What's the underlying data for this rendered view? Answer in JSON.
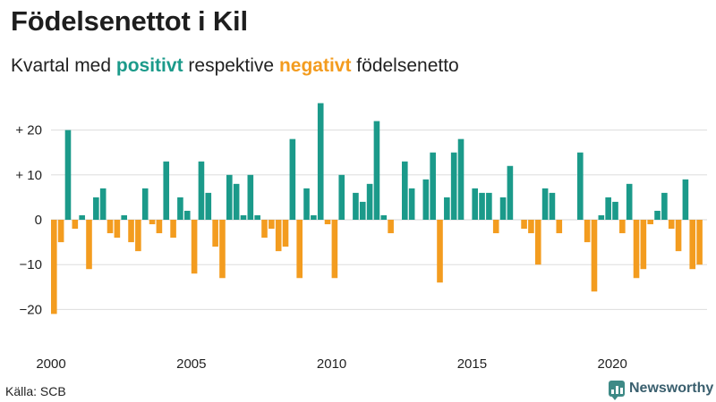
{
  "chart_data": {
    "type": "bar",
    "title": "Födelsenettot i Kil",
    "subtitle": {
      "prefix": "Kvartal med ",
      "positive": "positivt",
      "middle": " respektive ",
      "negative": "negativt",
      "suffix": " födelsenetto"
    },
    "x_start": 2000,
    "periods_per_year": 4,
    "x_ticks": [
      2000,
      2005,
      2010,
      2015,
      2020
    ],
    "x_tick_labels": [
      "2000",
      "2005",
      "2010",
      "2015",
      "2020"
    ],
    "ylim": [
      -25,
      30
    ],
    "y_ticks": [
      20,
      10,
      0,
      -10,
      -20
    ],
    "y_tick_labels": [
      "+ 20",
      "+ 10",
      "0",
      "−10",
      "−20"
    ],
    "colors": {
      "positive": "#1b9a8a",
      "negative": "#f39c1f",
      "grid": "#dddddd"
    },
    "values": [
      -21,
      -5,
      20,
      -2,
      1,
      -11,
      5,
      7,
      -3,
      -4,
      1,
      -5,
      -7,
      7,
      -1,
      -3,
      13,
      -4,
      5,
      2,
      -12,
      13,
      6,
      -6,
      -13,
      10,
      8,
      1,
      10,
      1,
      -4,
      -2,
      -7,
      -6,
      18,
      -13,
      7,
      1,
      26,
      -1,
      -13,
      10,
      0,
      6,
      4,
      8,
      22,
      1,
      -3,
      0,
      13,
      7,
      0,
      9,
      15,
      -14,
      5,
      15,
      18,
      0,
      7,
      6,
      6,
      -3,
      5,
      12,
      0,
      -2,
      -3,
      -10,
      7,
      6,
      -3,
      0,
      0,
      15,
      -5,
      -16,
      1,
      5,
      4,
      -3,
      8,
      -13,
      -11,
      -1,
      2,
      6,
      -2,
      -7,
      9,
      -11,
      -10
    ]
  },
  "footer": {
    "source": "Källa: SCB",
    "brand": "Newsworthy",
    "brand_icon": "newsworthy-logo-icon"
  }
}
